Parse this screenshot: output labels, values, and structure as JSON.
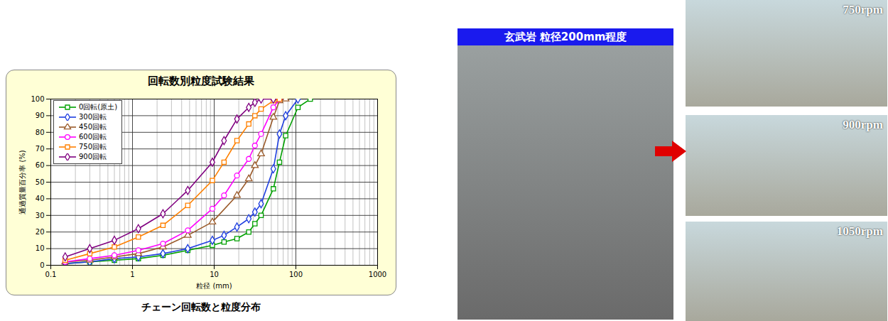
{
  "chart_data": {
    "type": "line",
    "title": "回転数別粒度試験結果",
    "caption": "チェーン回転数と粒度分布",
    "x_label": "粒径 (mm)",
    "y_label": "通過質量百分率 (%)",
    "log": "x",
    "grid": true,
    "legend": "top-left",
    "xlim": [
      0.1,
      1000
    ],
    "xticks": [
      0.1,
      1,
      10,
      100,
      1000
    ],
    "ylim": [
      0,
      100
    ],
    "yticks": [
      0,
      10,
      20,
      30,
      40,
      50,
      60,
      70,
      80,
      90,
      100
    ],
    "series": [
      {
        "name": "0回転(原土)",
        "color": "#00a000",
        "marker": "square",
        "x": [
          0.15,
          0.3,
          0.6,
          1.18,
          2.36,
          4.75,
          9.5,
          13.2,
          19,
          26.5,
          31.5,
          37.5,
          53,
          63,
          75,
          106,
          150
        ],
        "values": [
          1,
          2,
          3,
          4,
          6,
          9,
          12,
          14,
          16,
          20,
          25,
          30,
          46,
          62,
          78,
          95,
          100
        ]
      },
      {
        "name": "300回転",
        "color": "#1f3fe0",
        "marker": "diamond",
        "x": [
          0.15,
          0.3,
          0.6,
          1.18,
          2.36,
          4.75,
          9.5,
          13.2,
          19,
          26.5,
          31.5,
          37.5,
          53,
          63,
          75,
          106
        ],
        "values": [
          1,
          2,
          4,
          5,
          7,
          10,
          15,
          18,
          23,
          28,
          32,
          37,
          58,
          79,
          90,
          100
        ]
      },
      {
        "name": "450回転",
        "color": "#9a5a2a",
        "marker": "triangle",
        "x": [
          0.15,
          0.3,
          0.6,
          1.18,
          2.36,
          4.75,
          9.5,
          19,
          26.5,
          31.5,
          37.5,
          53,
          63,
          75
        ],
        "values": [
          2,
          3,
          5,
          7,
          11,
          18,
          26,
          42,
          52,
          60,
          67,
          89,
          99,
          100
        ]
      },
      {
        "name": "600回転",
        "color": "#ff00ff",
        "marker": "circle",
        "x": [
          0.15,
          0.3,
          0.6,
          1.18,
          2.36,
          4.75,
          9.5,
          13.2,
          19,
          26.5,
          31.5,
          37.5,
          53,
          63
        ],
        "values": [
          2,
          4,
          6,
          9,
          13,
          21,
          34,
          42,
          54,
          64,
          72,
          79,
          95,
          100
        ]
      },
      {
        "name": "750回転",
        "color": "#ff8000",
        "marker": "square",
        "x": [
          0.15,
          0.3,
          0.6,
          1.18,
          2.36,
          4.75,
          9.5,
          13.2,
          19,
          26.5,
          31.5,
          37.5,
          53,
          63
        ],
        "values": [
          3,
          7,
          11,
          17,
          24,
          36,
          51,
          62,
          75,
          85,
          90,
          94,
          99,
          100
        ]
      },
      {
        "name": "900回転",
        "color": "#800080",
        "marker": "diamond",
        "x": [
          0.15,
          0.3,
          0.6,
          1.18,
          2.36,
          4.75,
          9.5,
          13.2,
          19,
          26.5,
          31.5,
          37.5,
          53
        ],
        "values": [
          5,
          10,
          15,
          22,
          31,
          45,
          62,
          75,
          88,
          95,
          98,
          100,
          100
        ]
      }
    ]
  },
  "photo_panel": {
    "title": "玄武岩 粒径200mm程度",
    "labels": [
      "750rpm",
      "900rpm",
      "1050rpm"
    ]
  }
}
